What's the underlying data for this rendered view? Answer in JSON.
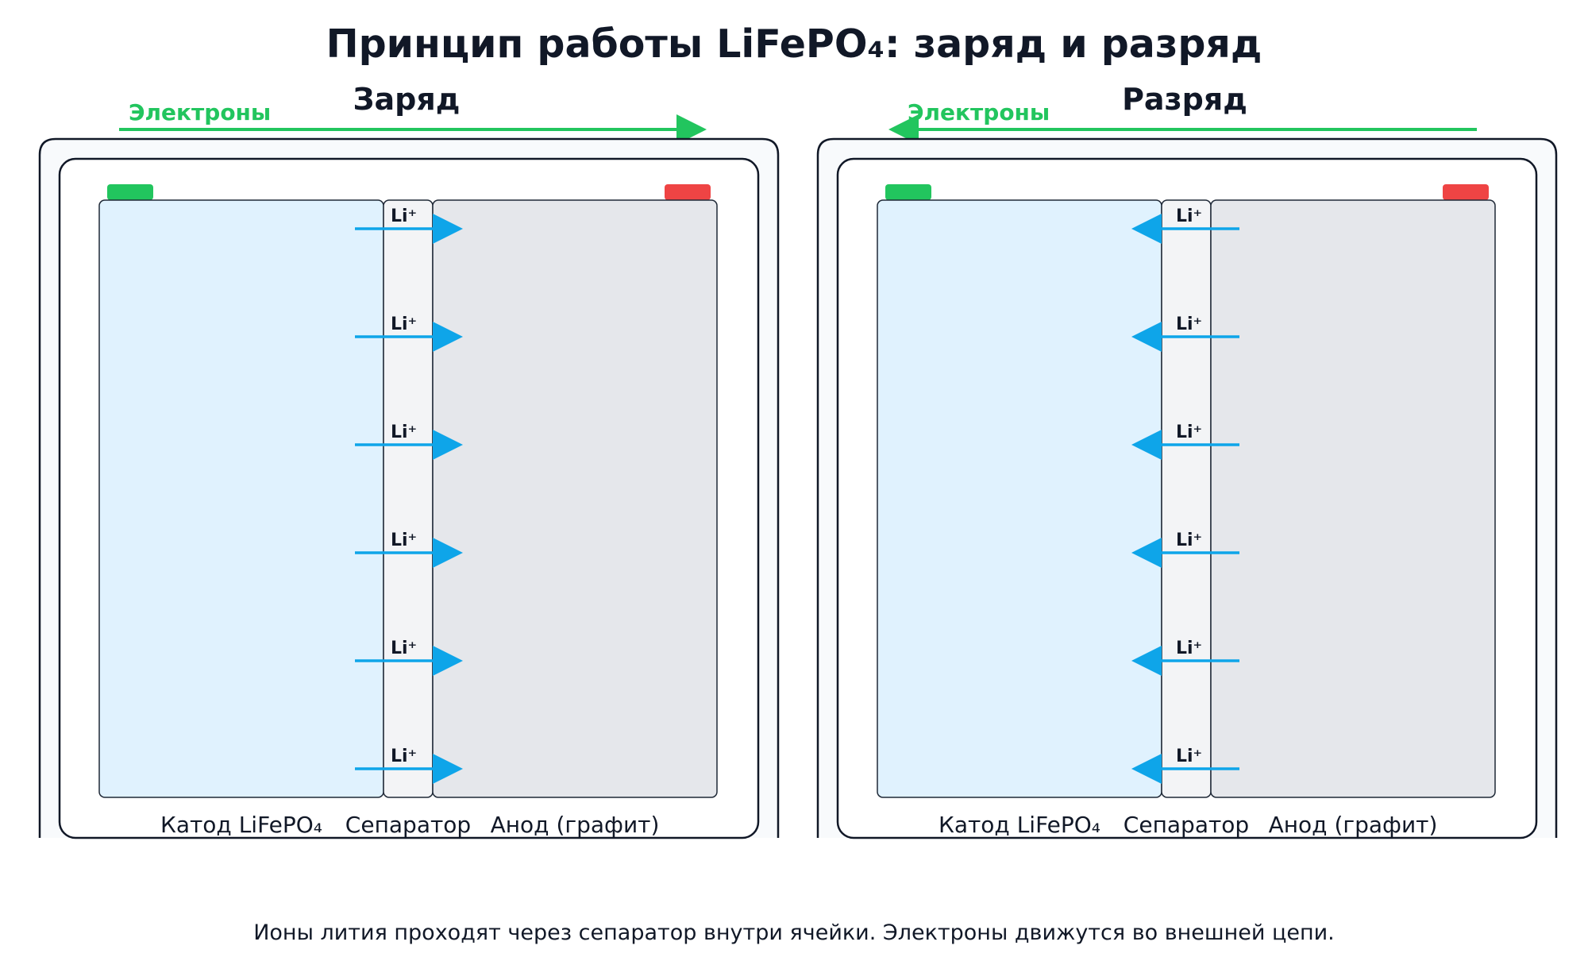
{
  "title": "Принцип работы LiFePO₄: заряд и разряд",
  "colors": {
    "electron": "#22c55e",
    "ion": "#0ea5e9",
    "cathode": "#e0f2fe",
    "separator": "#f3f4f6",
    "anode": "#e5e7eb",
    "terminal_positive": "#22c55e",
    "terminal_negative": "#ef4444"
  },
  "labels": {
    "cathode": "Катод LiFePO₄",
    "separator": "Сепаратор",
    "anode": "Анод (графит)",
    "ion": "Li⁺"
  },
  "panels": [
    {
      "title": "Заряд",
      "electron_label": "Электроны",
      "electron_direction": "right",
      "ion_direction": "right",
      "ion_count": 6
    },
    {
      "title": "Разряд",
      "electron_label": "Электроны",
      "electron_direction": "left",
      "ion_direction": "left",
      "ion_count": 6
    }
  ],
  "caption": "Ионы лития проходят через сепаратор внутри ячейки. Электроны движутся во внешней цепи."
}
